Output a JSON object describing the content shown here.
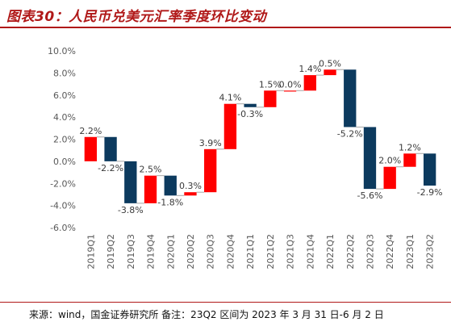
{
  "header": {
    "title": "图表30：人民币兑美元汇率季度环比变动"
  },
  "footer": {
    "source": "来源：wind，国金证券研究所 备注：23Q2 区间为 2023 年 3 月 31 日-6 月 2 日"
  },
  "chart_data": {
    "type": "waterfall",
    "categories": [
      "2019Q1",
      "2019Q2",
      "2019Q3",
      "2019Q4",
      "2020Q1",
      "2020Q2",
      "2020Q3",
      "2020Q4",
      "2021Q1",
      "2021Q2",
      "2021Q3",
      "2021Q4",
      "2022Q1",
      "2022Q2",
      "2022Q3",
      "2022Q4",
      "2023Q1",
      "2023Q2"
    ],
    "values": [
      2.2,
      -2.2,
      -3.8,
      2.5,
      -1.8,
      0.3,
      3.9,
      4.1,
      -0.3,
      1.5,
      0.0,
      1.4,
      0.5,
      -5.2,
      -5.6,
      2.0,
      1.2,
      -2.9
    ],
    "data_labels": [
      "2.2%",
      "-2.2%",
      "-3.8%",
      "2.5%",
      "-1.8%",
      "0.3%",
      "3.9%",
      "4.1%",
      "-0.3%",
      "1.5%",
      "0.0%",
      "1.4%",
      "0.5%",
      "-5.2%",
      "-5.6%",
      "2.0%",
      "1.2%",
      "-2.9%"
    ],
    "ylim": [
      -6,
      10
    ],
    "yticks": [
      "-6.0%",
      "-4.0%",
      "-2.0%",
      "0.0%",
      "2.0%",
      "4.0%",
      "6.0%",
      "8.0%",
      "10.0%"
    ],
    "colors": {
      "increase": "#ff0000",
      "decrease": "#0c3a5e"
    },
    "grid": false,
    "legend": "none"
  }
}
